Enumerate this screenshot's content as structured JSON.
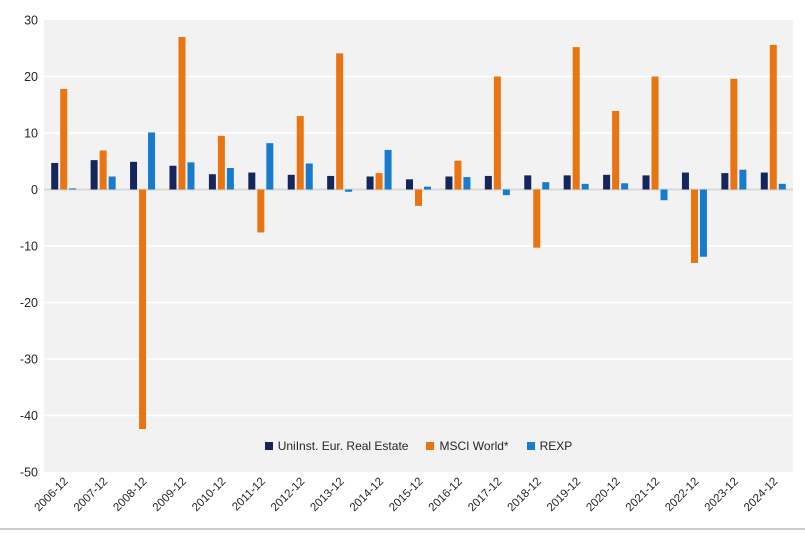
{
  "chart_data": {
    "type": "bar",
    "title": "",
    "xlabel": "",
    "ylabel": "",
    "categories": [
      "2006-12",
      "2007-12",
      "2008-12",
      "2009-12",
      "2010-12",
      "2011-12",
      "2012-12",
      "2013-12",
      "2014-12",
      "2015-12",
      "2016-12",
      "2017-12",
      "2018-12",
      "2019-12",
      "2020-12",
      "2021-12",
      "2022-12",
      "2023-12",
      "2024-12"
    ],
    "series": [
      {
        "name": "UniInst. Eur. Real Estate",
        "color": "#14265c",
        "values": [
          4.7,
          5.2,
          4.9,
          4.2,
          2.7,
          3.0,
          2.6,
          2.4,
          2.3,
          1.8,
          2.3,
          2.4,
          2.5,
          2.5,
          2.6,
          2.5,
          3.0,
          2.9,
          3.0
        ]
      },
      {
        "name": "MSCI World*",
        "color": "#e87511",
        "values": [
          17.8,
          6.9,
          -42.4,
          27.0,
          9.5,
          -7.6,
          13.0,
          24.1,
          2.9,
          -2.9,
          5.1,
          20.0,
          -10.3,
          25.2,
          13.9,
          20.0,
          -13.0,
          19.6,
          25.6
        ]
      },
      {
        "name": "REXP",
        "color": "#187bcd",
        "values": [
          0.2,
          2.3,
          10.1,
          4.8,
          3.8,
          8.2,
          4.6,
          -0.4,
          7.0,
          0.5,
          2.2,
          -1.0,
          1.3,
          1.0,
          1.1,
          -1.9,
          -11.9,
          3.5,
          1.0
        ]
      }
    ],
    "ylim": [
      -50,
      30
    ],
    "ytick_step": 10,
    "ytick_labels": [
      "30",
      "20",
      "10",
      "0",
      "-10",
      "-20",
      "-30",
      "-40",
      "-50"
    ],
    "grid": true,
    "legend_position": "bottom-center-inside",
    "colors": {
      "plot_background": "#f2f2f2",
      "grid_line": "#ffffff",
      "zero_line": "#d8d8d8",
      "tick_text": "#262626",
      "bottom_rule": "#c9cdd1"
    }
  }
}
